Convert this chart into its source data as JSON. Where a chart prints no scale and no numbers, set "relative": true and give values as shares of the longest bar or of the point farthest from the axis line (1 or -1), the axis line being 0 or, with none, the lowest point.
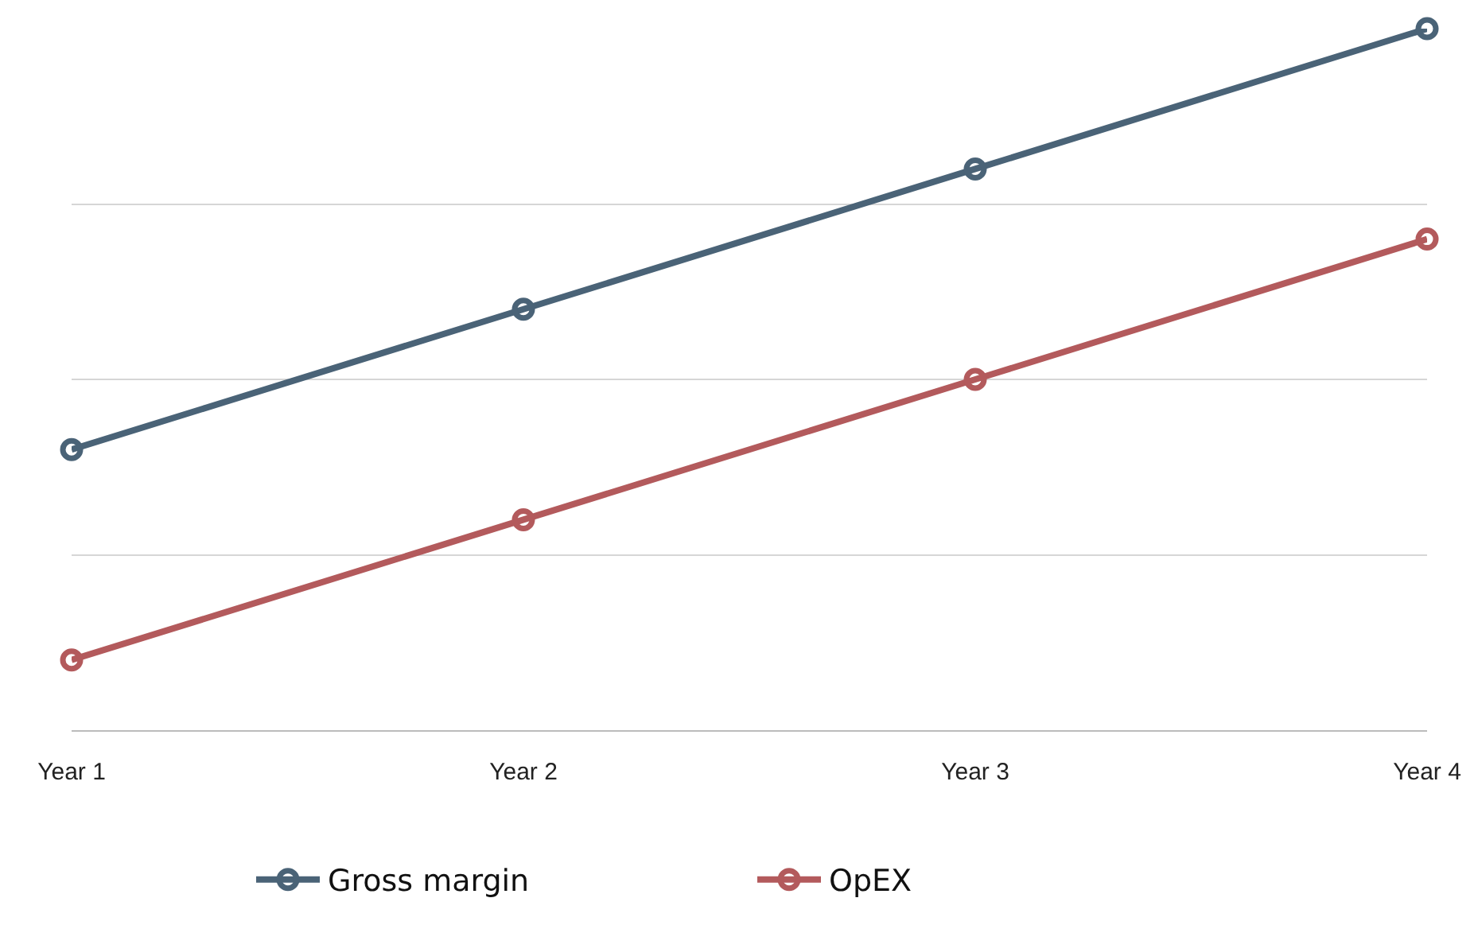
{
  "chart_data": {
    "type": "line",
    "relative": true,
    "categories": [
      "Year 1",
      "Year 2",
      "Year 3",
      "Year 4"
    ],
    "series": [
      {
        "name": "Gross margin",
        "color": "#4a6377",
        "values": [
          0.4,
          0.6,
          0.8,
          1.0
        ]
      },
      {
        "name": "OpEX",
        "color": "#b35a5c",
        "values": [
          0.1,
          0.3,
          0.5,
          0.7
        ]
      }
    ],
    "marker": "circle",
    "line_style": "solid",
    "grid": "y",
    "legend": "bottom"
  }
}
